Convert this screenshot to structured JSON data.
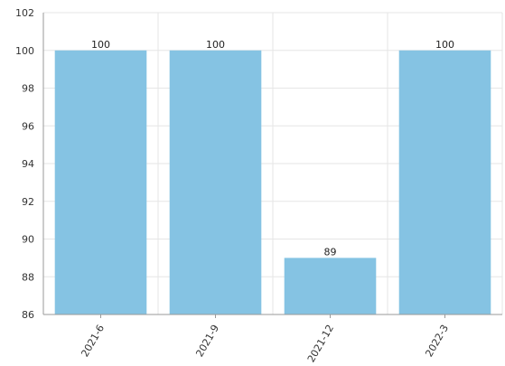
{
  "chart_data": {
    "type": "bar",
    "categories": [
      "2021-6",
      "2021-9",
      "2021-12",
      "2022-3"
    ],
    "values": [
      100,
      100,
      89,
      100
    ],
    "data_labels": [
      "100",
      "100",
      "89",
      "100"
    ],
    "ylim": [
      86,
      102
    ],
    "yticks": [
      86,
      88,
      90,
      92,
      94,
      96,
      98,
      100,
      102
    ],
    "grid": true,
    "bar_color": "#85c3e3",
    "title": "",
    "xlabel": "",
    "ylabel": ""
  }
}
